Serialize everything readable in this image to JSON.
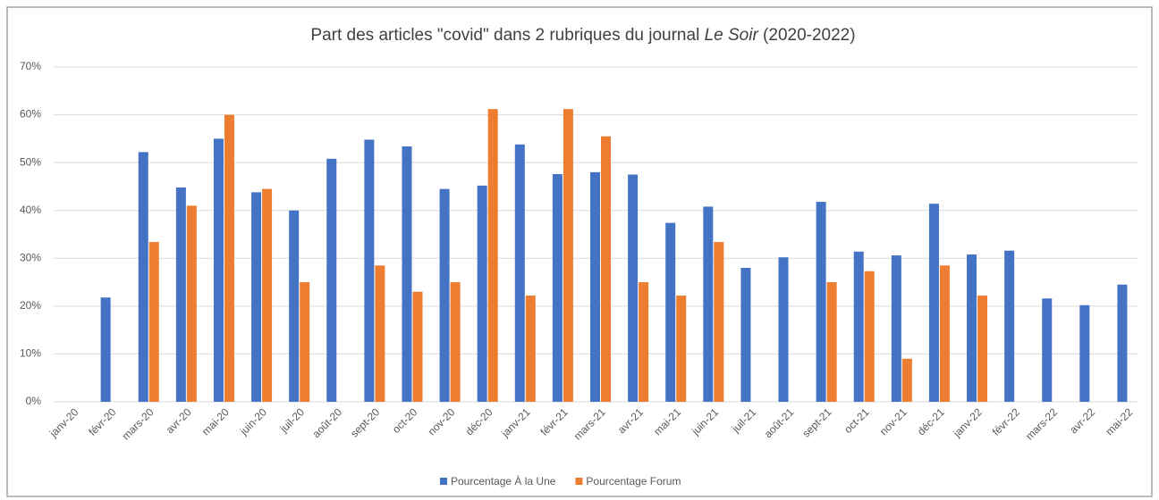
{
  "chart_data": {
    "type": "bar",
    "title": [
      "Part des articles \"covid\" dans 2 rubriques du journal ",
      "Le Soir",
      " (2020-2022)"
    ],
    "categories": [
      "janv-20",
      "févr-20",
      "mars-20",
      "avr-20",
      "mai-20",
      "juin-20",
      "juil-20",
      "août-20",
      "sept-20",
      "oct-20",
      "nov-20",
      "déc-20",
      "janv-21",
      "févr-21",
      "mars-21",
      "avr-21",
      "mai-21",
      "juin-21",
      "juil-21",
      "août-21",
      "sept-21",
      "oct-21",
      "nov-21",
      "déc-21",
      "janv-22",
      "févr-22",
      "mars-22",
      "avr-22",
      "mai-22"
    ],
    "series": [
      {
        "name": "Pourcentage À la Une",
        "color": "#4472c4",
        "values": [
          null,
          21.8,
          52.2,
          44.8,
          55,
          43.8,
          40,
          50.8,
          54.8,
          53.4,
          44.5,
          45.2,
          53.8,
          47.6,
          48,
          47.5,
          37.4,
          40.8,
          28,
          30.2,
          41.8,
          31.4,
          30.6,
          41.4,
          30.8,
          31.6,
          21.6,
          20.2,
          24.5
        ]
      },
      {
        "name": "Pourcentage Forum",
        "color": "#ed7d31",
        "values": [
          null,
          null,
          33.4,
          41,
          60,
          44.5,
          25,
          null,
          28.5,
          23,
          25,
          61.2,
          22.2,
          61.2,
          55.5,
          25,
          22.2,
          33.4,
          null,
          null,
          25,
          27.3,
          9,
          28.5,
          22.2,
          null,
          null,
          null,
          null
        ]
      }
    ],
    "ylim": [
      0,
      70
    ],
    "yticks": [
      {
        "value": 0,
        "label": "0%"
      },
      {
        "value": 10,
        "label": "10%"
      },
      {
        "value": 20,
        "label": "20%"
      },
      {
        "value": 30,
        "label": "30%"
      },
      {
        "value": 40,
        "label": "40%"
      },
      {
        "value": 50,
        "label": "50%"
      },
      {
        "value": 60,
        "label": "60%"
      },
      {
        "value": 70,
        "label": "70%"
      }
    ],
    "grid": true,
    "legend": "bottom"
  }
}
